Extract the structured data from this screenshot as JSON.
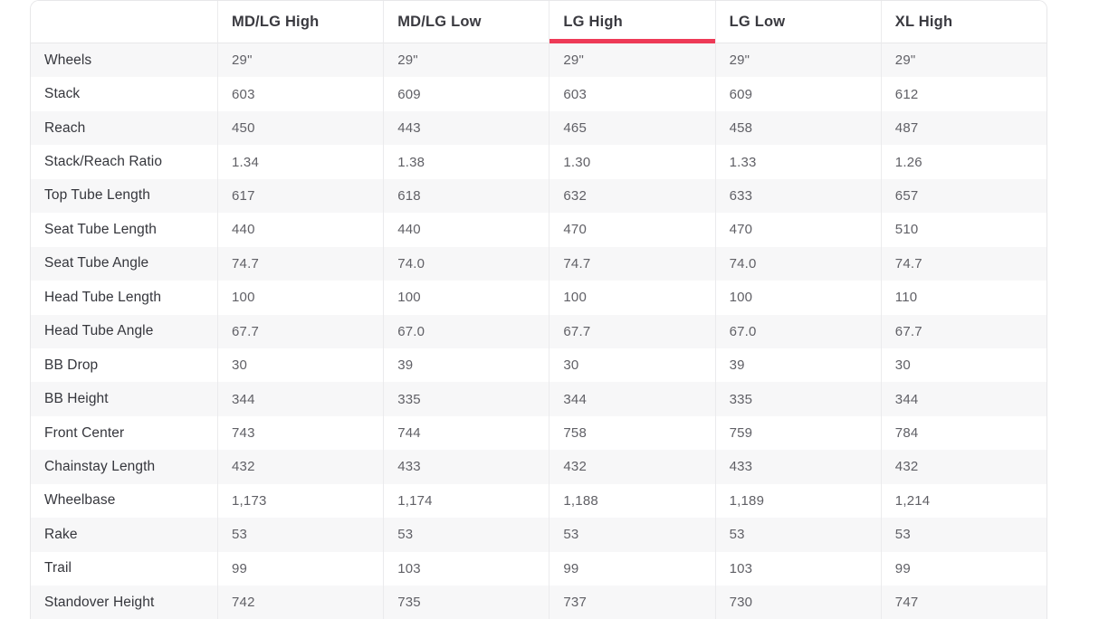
{
  "table": {
    "columns": [
      {
        "label": "MD/LG High",
        "active": false
      },
      {
        "label": "MD/LG Low",
        "active": false
      },
      {
        "label": "LG High",
        "active": true
      },
      {
        "label": "LG Low",
        "active": false
      },
      {
        "label": "XL High",
        "active": false
      }
    ],
    "rows": [
      {
        "label": "Wheels",
        "values": [
          "29\"",
          "29\"",
          "29\"",
          "29\"",
          "29\""
        ]
      },
      {
        "label": "Stack",
        "values": [
          "603",
          "609",
          "603",
          "609",
          "612"
        ]
      },
      {
        "label": "Reach",
        "values": [
          "450",
          "443",
          "465",
          "458",
          "487"
        ]
      },
      {
        "label": "Stack/Reach Ratio",
        "values": [
          "1.34",
          "1.38",
          "1.30",
          "1.33",
          "1.26"
        ]
      },
      {
        "label": "Top Tube Length",
        "values": [
          "617",
          "618",
          "632",
          "633",
          "657"
        ]
      },
      {
        "label": "Seat Tube Length",
        "values": [
          "440",
          "440",
          "470",
          "470",
          "510"
        ]
      },
      {
        "label": "Seat Tube Angle",
        "values": [
          "74.7",
          "74.0",
          "74.7",
          "74.0",
          "74.7"
        ]
      },
      {
        "label": "Head Tube Length",
        "values": [
          "100",
          "100",
          "100",
          "100",
          "110"
        ]
      },
      {
        "label": "Head Tube Angle",
        "values": [
          "67.7",
          "67.0",
          "67.7",
          "67.0",
          "67.7"
        ]
      },
      {
        "label": "BB Drop",
        "values": [
          "30",
          "39",
          "30",
          "39",
          "30"
        ]
      },
      {
        "label": "BB Height",
        "values": [
          "344",
          "335",
          "344",
          "335",
          "344"
        ]
      },
      {
        "label": "Front Center",
        "values": [
          "743",
          "744",
          "758",
          "759",
          "784"
        ]
      },
      {
        "label": "Chainstay Length",
        "values": [
          "432",
          "433",
          "432",
          "433",
          "432"
        ]
      },
      {
        "label": "Wheelbase",
        "values": [
          "1,173",
          "1,174",
          "1,188",
          "1,189",
          "1,214"
        ]
      },
      {
        "label": "Rake",
        "values": [
          "53",
          "53",
          "53",
          "53",
          "53"
        ]
      },
      {
        "label": "Trail",
        "values": [
          "99",
          "103",
          "99",
          "103",
          "99"
        ]
      },
      {
        "label": "Standover Height",
        "values": [
          "742",
          "735",
          "737",
          "730",
          "747"
        ]
      }
    ],
    "colors": {
      "active_tab_underline": "#ee3a57",
      "stripe_row_bg": "#f7f7f8",
      "divider": "#ebebed",
      "frame": "#e7e7e9"
    }
  }
}
